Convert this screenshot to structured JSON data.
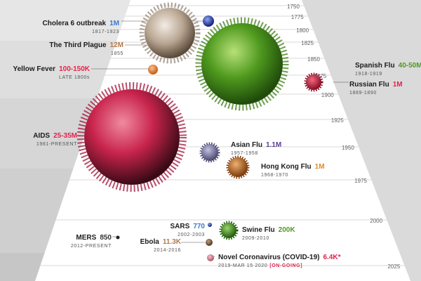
{
  "colors": {
    "red": "#e0244c",
    "green": "#4f9a1e",
    "brown": "#b07a4a",
    "orange": "#e08a2a",
    "blue": "#3a78c8",
    "purple": "#5a3e8e",
    "dark": "#333333"
  },
  "years": [
    "1750",
    "1775",
    "1800",
    "1825",
    "1850",
    "1875",
    "1900",
    "1925",
    "1950",
    "1975",
    "2000",
    "2025"
  ],
  "pandemics": {
    "cholera": {
      "name": "Cholera 6 outbreak",
      "deaths": "1M",
      "dates": "1817-1923",
      "color": "blue"
    },
    "plague": {
      "name": "The Third Plague",
      "deaths": "12M",
      "dates": "1855",
      "color": "brown"
    },
    "yellow": {
      "name": "Yellow Fever",
      "deaths": "100-150K",
      "dates": "LATE 1800s",
      "color": "red"
    },
    "spanish": {
      "name": "Spanish Flu",
      "deaths": "40-50M",
      "dates": "1918-1919",
      "color": "green"
    },
    "russian": {
      "name": "Russian Flu",
      "deaths": "1M",
      "dates": "1889-1890",
      "color": "red"
    },
    "aids": {
      "name": "AIDS",
      "deaths": "25-35M",
      "dates": "1981-PRESENT",
      "color": "red"
    },
    "asian": {
      "name": "Asian Flu",
      "deaths": "1.1M",
      "dates": "1957-1958",
      "color": "purple"
    },
    "hongkong": {
      "name": "Hong Kong Flu",
      "deaths": "1M",
      "dates": "1968-1970",
      "color": "orange"
    },
    "sars": {
      "name": "SARS",
      "deaths": "770",
      "dates": "2002-2003",
      "color": "blue"
    },
    "swine": {
      "name": "Swine Flu",
      "deaths": "200K",
      "dates": "2009-2010",
      "color": "green"
    },
    "mers": {
      "name": "MERS",
      "deaths": "850",
      "dates": "2012-PRESENT",
      "color": "dark"
    },
    "ebola": {
      "name": "Ebola",
      "deaths": "11.3K",
      "dates": "2014-2016",
      "color": "brown"
    },
    "covid": {
      "name": "Novel Coronavirus (COVID-19)",
      "deaths": "6.4K*",
      "dates": "2019-MAR 15 2020",
      "status": "[ON-GOING]",
      "color": "red"
    }
  }
}
